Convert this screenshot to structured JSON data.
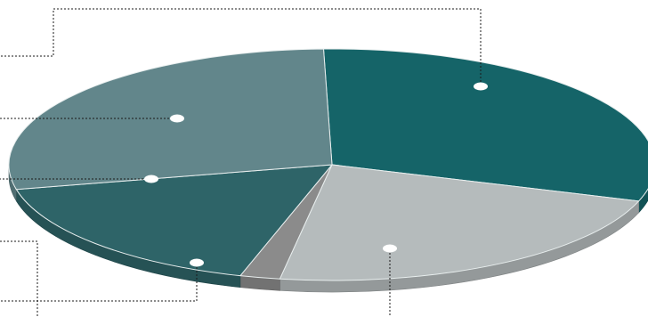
{
  "chart_data": {
    "type": "pie",
    "style": "3d-tilted",
    "labels_visible": false,
    "slices": [
      {
        "value": 30.5,
        "color": "#156468"
      },
      {
        "value": 22.5,
        "color": "#b5bbbc"
      },
      {
        "value": 2.0,
        "color": "#8b8b8b"
      },
      {
        "value": 17.0,
        "color": "#2e6468"
      },
      {
        "value": 28.0,
        "color": "#62868b"
      }
    ],
    "leader_line_color": "#1a1a1a"
  }
}
